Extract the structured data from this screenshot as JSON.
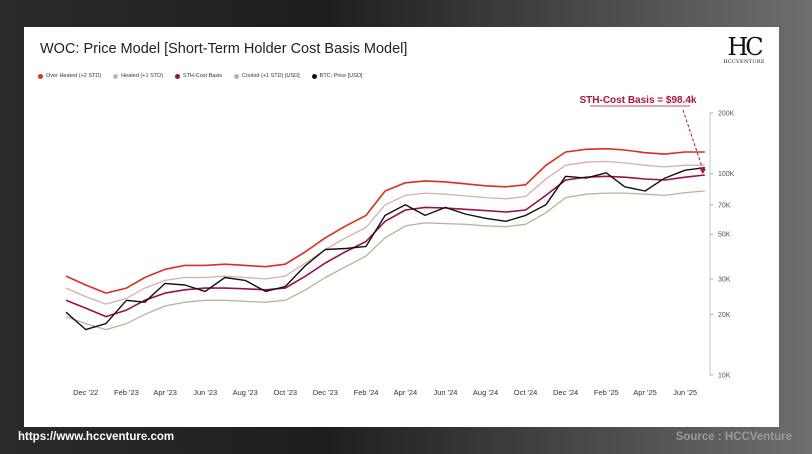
{
  "header": {
    "title": "WOC: Price Model [Short-Term Holder Cost Basis Model]"
  },
  "logo": {
    "mark": "HC",
    "word": "HCCVENTURE"
  },
  "footer": {
    "url": "https://www.hccventure.com",
    "source": "Source : HCCVenture"
  },
  "chart_data": {
    "type": "line",
    "y_scale": "log",
    "ylim": [
      10000,
      200000
    ],
    "y_ticks": [
      {
        "value": 200000,
        "label": "200K"
      },
      {
        "value": 100000,
        "label": "100K"
      },
      {
        "value": 70000,
        "label": "70K"
      },
      {
        "value": 50000,
        "label": "50K"
      },
      {
        "value": 30000,
        "label": "30K"
      },
      {
        "value": 20000,
        "label": "20K"
      },
      {
        "value": 10000,
        "label": "10K"
      }
    ],
    "xlim": [
      "2022-11-01",
      "2025-07-15"
    ],
    "x_ticks": [
      {
        "date": "2022-12-01",
        "label": "Dec '22"
      },
      {
        "date": "2023-02-01",
        "label": "Feb '23"
      },
      {
        "date": "2023-04-01",
        "label": "Apr '23"
      },
      {
        "date": "2023-06-01",
        "label": "Jun '23"
      },
      {
        "date": "2023-08-01",
        "label": "Aug '23"
      },
      {
        "date": "2023-10-01",
        "label": "Oct '23"
      },
      {
        "date": "2023-12-01",
        "label": "Dec '23"
      },
      {
        "date": "2024-02-01",
        "label": "Feb '24"
      },
      {
        "date": "2024-04-01",
        "label": "Apr '24"
      },
      {
        "date": "2024-06-01",
        "label": "Jun '24"
      },
      {
        "date": "2024-08-01",
        "label": "Aug '24"
      },
      {
        "date": "2024-10-01",
        "label": "Oct '24"
      },
      {
        "date": "2024-12-01",
        "label": "Dec '24"
      },
      {
        "date": "2025-02-01",
        "label": "Feb '25"
      },
      {
        "date": "2025-04-01",
        "label": "Apr '25"
      },
      {
        "date": "2025-06-01",
        "label": "Jun '25"
      }
    ],
    "legend_position": "top-left",
    "grid": false,
    "dates": [
      "2022-11-01",
      "2022-12-01",
      "2023-01-01",
      "2023-02-01",
      "2023-03-01",
      "2023-04-01",
      "2023-05-01",
      "2023-06-01",
      "2023-07-01",
      "2023-08-01",
      "2023-09-01",
      "2023-10-01",
      "2023-11-01",
      "2023-12-01",
      "2024-01-01",
      "2024-02-01",
      "2024-03-01",
      "2024-04-01",
      "2024-05-01",
      "2024-06-01",
      "2024-07-01",
      "2024-08-01",
      "2024-09-01",
      "2024-10-01",
      "2024-11-01",
      "2024-12-01",
      "2025-01-01",
      "2025-02-01",
      "2025-03-01",
      "2025-04-01",
      "2025-05-01",
      "2025-06-01",
      "2025-07-01"
    ],
    "series": [
      {
        "name": "Over Heated (+2 STD)",
        "color": "#e02b20",
        "values": [
          31000,
          28000,
          25500,
          27000,
          30500,
          33500,
          35000,
          35000,
          35500,
          35000,
          34500,
          35500,
          41000,
          48000,
          55000,
          62000,
          82000,
          90000,
          92000,
          91000,
          89000,
          87000,
          86000,
          88000,
          110000,
          128000,
          132000,
          133000,
          131000,
          127000,
          125000,
          128000,
          128000
        ]
      },
      {
        "name": "Heated (+1 STD)",
        "color": "#d8b0a8",
        "values": [
          27000,
          24500,
          22500,
          24000,
          27000,
          29500,
          30500,
          30500,
          31000,
          30500,
          30000,
          31000,
          36000,
          42000,
          48000,
          54000,
          70000,
          78000,
          80000,
          79000,
          77500,
          76000,
          75000,
          77000,
          94000,
          110000,
          114000,
          115000,
          113000,
          110000,
          108000,
          110000,
          110000
        ]
      },
      {
        "name": "STH-Cost Basis",
        "color": "#9b1147",
        "values": [
          23500,
          21500,
          19500,
          21000,
          23500,
          25500,
          26500,
          27000,
          27000,
          26800,
          26500,
          27000,
          31000,
          36000,
          41000,
          46000,
          58000,
          66000,
          68000,
          67500,
          66500,
          65500,
          64500,
          66000,
          78000,
          93000,
          96000,
          97000,
          96000,
          94000,
          93000,
          96000,
          98400
        ]
      },
      {
        "name": "Cooled (+1 STD) [USD]",
        "color": "#b7b49a",
        "values": [
          19500,
          18000,
          16800,
          18000,
          20000,
          22000,
          23000,
          23500,
          23500,
          23200,
          23000,
          23500,
          26500,
          30500,
          34500,
          39000,
          48000,
          55000,
          57000,
          56500,
          56000,
          55000,
          54500,
          56000,
          64000,
          76000,
          79000,
          80000,
          80000,
          79000,
          78000,
          80500,
          82000
        ]
      },
      {
        "name": "BTC: Price [USD]",
        "color": "#111111",
        "values": [
          20500,
          16800,
          18000,
          23500,
          23000,
          28500,
          28000,
          26000,
          30500,
          29500,
          26000,
          27500,
          35000,
          42000,
          42500,
          43500,
          62000,
          70000,
          62000,
          68000,
          63000,
          60000,
          58000,
          62000,
          70000,
          97000,
          95000,
          101000,
          86000,
          82000,
          95000,
          104000,
          107000
        ]
      }
    ],
    "annotations": [
      {
        "text": "STH-Cost Basis = $98.4k",
        "date": "2025-07-01",
        "value": 98400
      }
    ]
  }
}
